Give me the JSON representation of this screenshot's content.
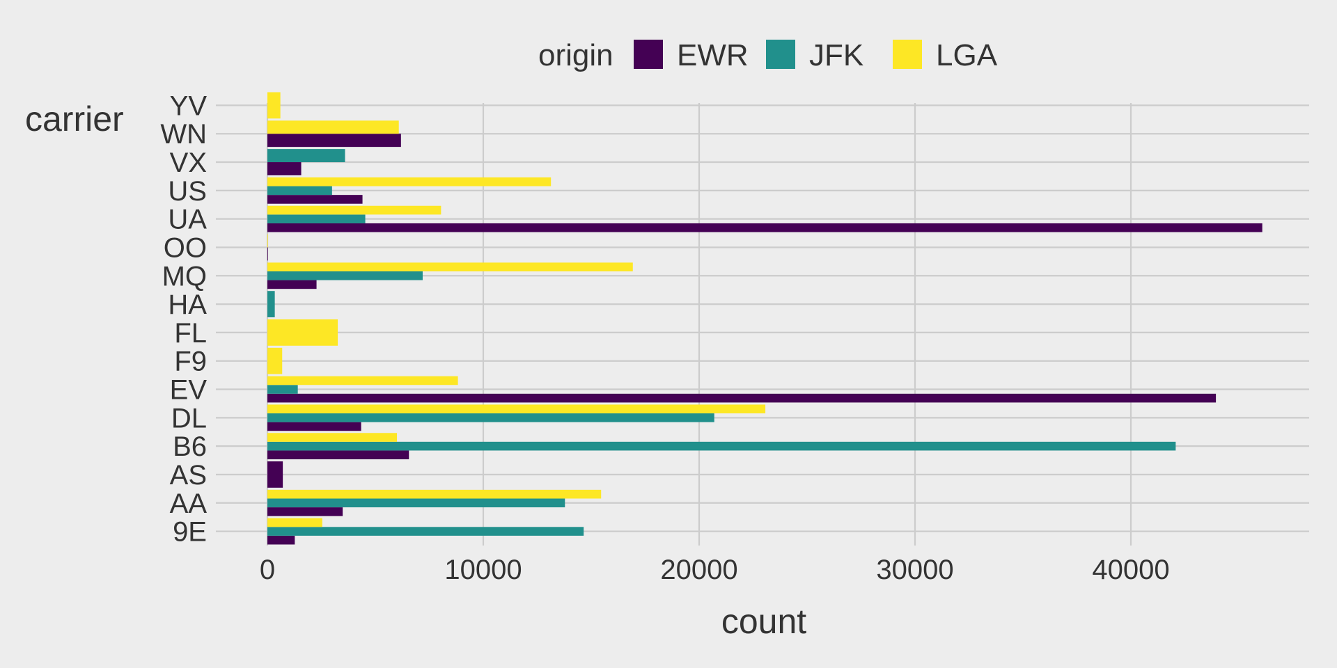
{
  "chart_data": {
    "type": "bar",
    "orientation": "horizontal",
    "grouping": "dodge",
    "xlabel": "count",
    "ylabel": "carrier",
    "xlim": [
      -2500,
      48500
    ],
    "x_ticks": [
      0,
      10000,
      20000,
      30000,
      40000
    ],
    "x_tick_labels": [
      "0",
      "10000",
      "20000",
      "30000",
      "40000"
    ],
    "grid": true,
    "legend": {
      "title": "origin",
      "position": "top"
    },
    "categories": [
      "9E",
      "AA",
      "AS",
      "B6",
      "DL",
      "EV",
      "F9",
      "FL",
      "HA",
      "MQ",
      "OO",
      "UA",
      "US",
      "VX",
      "WN",
      "YV"
    ],
    "series": [
      {
        "name": "EWR",
        "color": "#440154",
        "values": [
          1268,
          3487,
          714,
          6557,
          4342,
          43939,
          null,
          null,
          null,
          2276,
          6,
          46087,
          4405,
          1566,
          6188,
          null
        ]
      },
      {
        "name": "JFK",
        "color": "#21908C",
        "values": [
          14651,
          13783,
          null,
          42076,
          20701,
          1408,
          null,
          null,
          342,
          7193,
          null,
          4534,
          2995,
          3596,
          null,
          null
        ]
      },
      {
        "name": "LGA",
        "color": "#FDE725",
        "values": [
          2541,
          15459,
          null,
          6002,
          23067,
          8826,
          685,
          3260,
          null,
          16928,
          26,
          8044,
          13136,
          null,
          6087,
          601
        ]
      }
    ]
  }
}
